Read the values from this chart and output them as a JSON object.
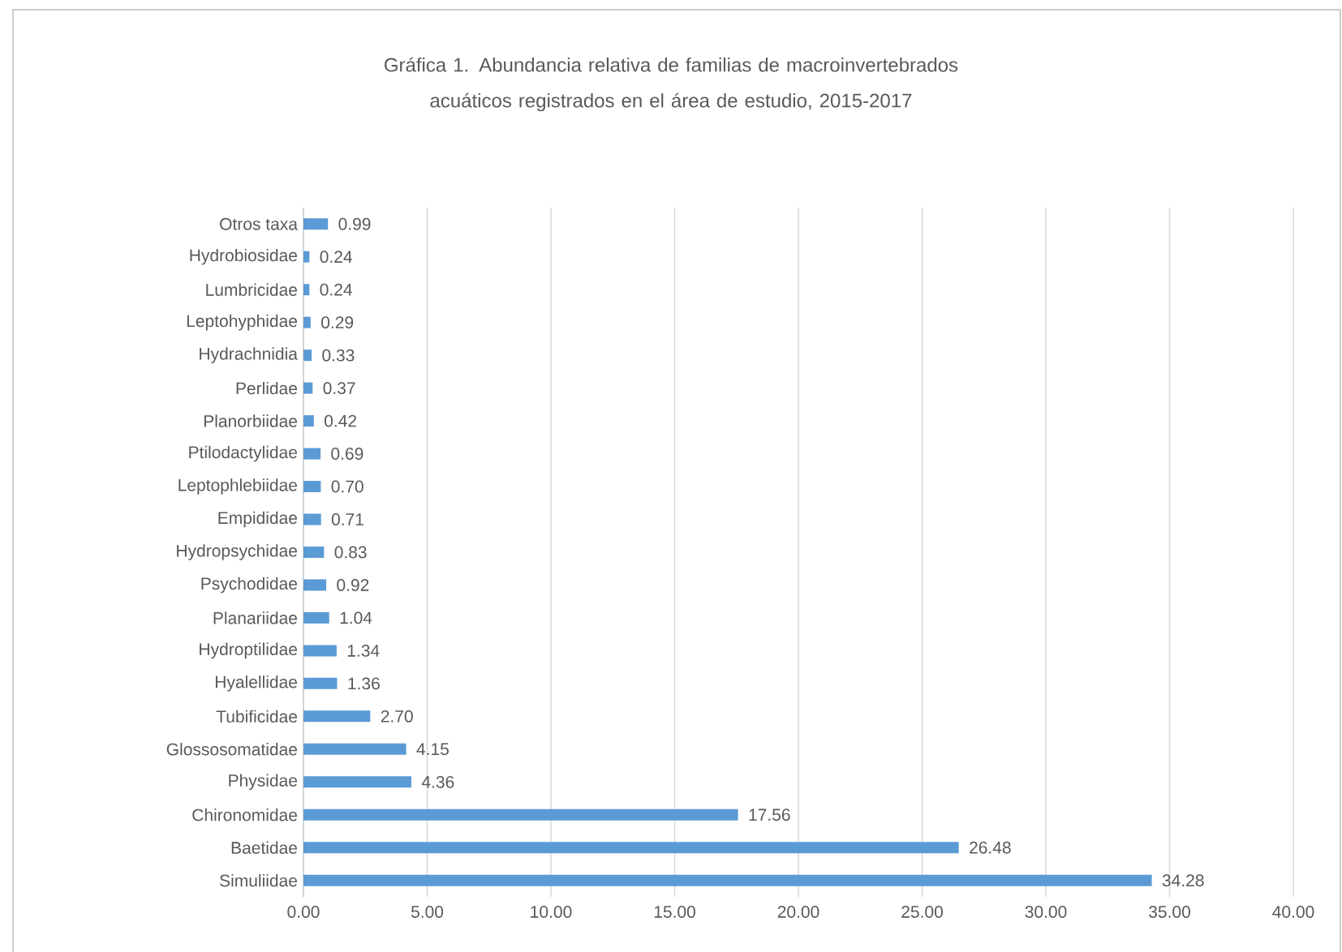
{
  "chart_data": {
    "type": "bar",
    "orientation": "horizontal",
    "title": "Gráfica 1. Abundancia relativa de familias de macroinvertebrados acuáticos registrados en el área de estudio, 2015-2017",
    "categories": [
      "Otros taxa",
      "Hydrobiosidae",
      "Lumbricidae",
      "Leptohyphidae",
      "Hydrachnidia",
      "Perlidae",
      "Planorbiidae",
      "Ptilodactylidae",
      "Leptophlebiidae",
      "Empididae",
      "Hydropsychidae",
      "Psychodidae",
      "Planariidae",
      "Hydroptilidae",
      "Hyalellidae",
      "Tubificidae",
      "Glossosomatidae",
      "Physidae",
      "Chironomidae",
      "Baetidae",
      "Simuliidae"
    ],
    "values": [
      0.99,
      0.24,
      0.24,
      0.29,
      0.33,
      0.37,
      0.42,
      0.69,
      0.7,
      0.71,
      0.83,
      0.92,
      1.04,
      1.34,
      1.36,
      2.7,
      4.15,
      4.36,
      17.56,
      26.48,
      34.28
    ],
    "value_labels": [
      "0.99",
      "0.24",
      "0.24",
      "0.29",
      "0.33",
      "0.37",
      "0.42",
      "0.69",
      "0.70",
      "0.71",
      "0.83",
      "0.92",
      "1.04",
      "1.34",
      "1.36",
      "2.70",
      "4.15",
      "4.36",
      "17.56",
      "26.48",
      "34.28"
    ],
    "color": "#5b9bd5",
    "xlim": [
      0,
      40
    ],
    "xticks": [
      {
        "value": 0,
        "label": "0.00"
      },
      {
        "value": 5,
        "label": "5.00"
      },
      {
        "value": 10,
        "label": "10.00"
      },
      {
        "value": 15,
        "label": "15.00"
      },
      {
        "value": 20,
        "label": "20.00"
      },
      {
        "value": 25,
        "label": "25.00"
      },
      {
        "value": 30,
        "label": "30.00"
      },
      {
        "value": 35,
        "label": "35.00"
      },
      {
        "value": 40,
        "label": "40.00"
      }
    ],
    "grid": "x"
  }
}
